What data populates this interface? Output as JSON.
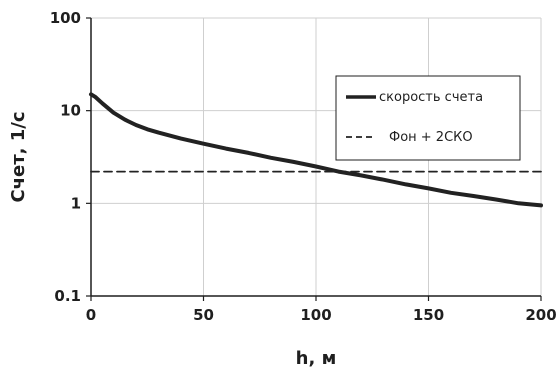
{
  "chart_data": {
    "type": "line",
    "xlabel": "h, м",
    "ylabel": "Счет, 1/с",
    "xlim": [
      0,
      200
    ],
    "ylim": [
      0.1,
      100
    ],
    "y_scale": "log",
    "grid": true,
    "legend_position": "right",
    "x_ticks": [
      "0",
      "50",
      "100",
      "150",
      "200"
    ],
    "y_ticks": [
      "0.1",
      "1",
      "10",
      "100"
    ],
    "series": [
      {
        "name": "скорость счета",
        "style": "solid",
        "color": "#222222",
        "x": [
          0,
          2,
          5,
          10,
          15,
          20,
          25,
          30,
          40,
          50,
          60,
          70,
          80,
          90,
          100,
          110,
          120,
          130,
          140,
          150,
          160,
          170,
          180,
          190,
          200
        ],
        "y": [
          15,
          14,
          12,
          9.5,
          8,
          7,
          6.3,
          5.8,
          5,
          4.4,
          3.9,
          3.5,
          3.1,
          2.8,
          2.5,
          2.2,
          2.0,
          1.8,
          1.6,
          1.45,
          1.3,
          1.2,
          1.1,
          1.0,
          0.95
        ]
      },
      {
        "name": "Фон + 2СКО",
        "style": "dashed",
        "color": "#222222",
        "x": [
          0,
          200
        ],
        "y": [
          2.2,
          2.2
        ]
      }
    ]
  },
  "colors": {
    "axis": "#1f1f1f",
    "grid": "#cfcfcf",
    "series": "#222222",
    "background": "#ffffff"
  }
}
